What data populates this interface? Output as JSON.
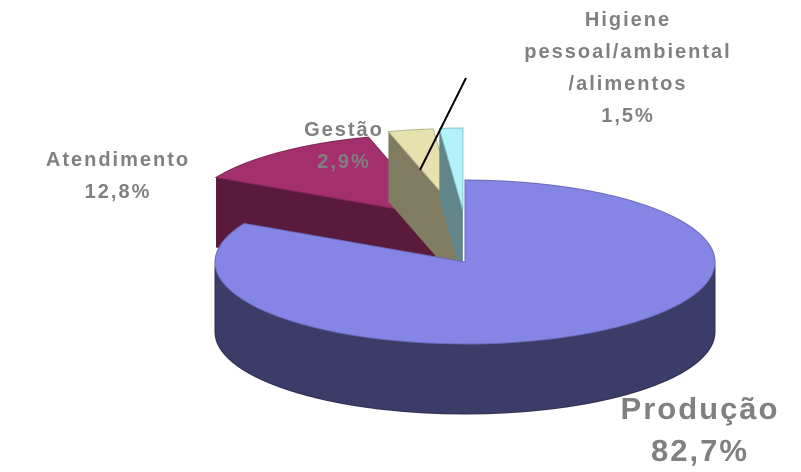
{
  "chart_data": {
    "type": "pie3d",
    "categories": [
      "Produção",
      "Atendimento",
      "Gestão",
      "Higiene\npessoal/ambiental\n/alimentos"
    ],
    "values": [
      82.7,
      12.8,
      2.9,
      1.5
    ],
    "value_labels": [
      "82,7%",
      "12,8%",
      "2,9%",
      "1,5%"
    ],
    "colors": [
      "#8585e6",
      "#a3306c",
      "#e6e2b0",
      "#b2f2fa"
    ]
  }
}
